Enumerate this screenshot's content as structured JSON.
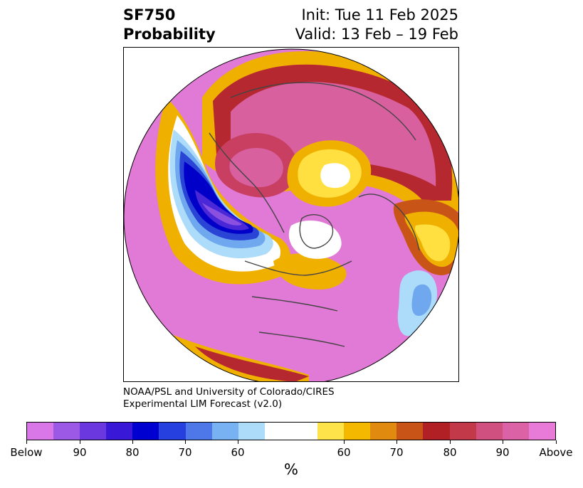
{
  "title": {
    "variable": "SF750",
    "subtitle": "Probability",
    "init": "Init: Tue 11 Feb 2025",
    "valid": "Valid: 13 Feb – 19 Feb"
  },
  "credit": {
    "line1": "NOAA/PSL and University of Colorado/CIRES",
    "line2": "Experimental LIM Forecast (v2.0)"
  },
  "colorbar": {
    "unit": "%",
    "colors": [
      "#d977e9",
      "#9b59e6",
      "#6b38e0",
      "#3a18d8",
      "#0000d0",
      "#2540de",
      "#4e78e8",
      "#78b2f2",
      "#addcfa",
      "#ffffff",
      "#ffe34a",
      "#f5b800",
      "#e08a10",
      "#c95418",
      "#b02024",
      "#c23a4a",
      "#d05080",
      "#dc62a6",
      "#e87ad8"
    ],
    "ticks": [
      "Below",
      "90",
      "80",
      "70",
      "60",
      "60",
      "70",
      "80",
      "90",
      "Above"
    ]
  },
  "map": {
    "projection": "north-polar-stereographic",
    "palette": {
      "magenta": "#e07ad6",
      "pink": "#d8609f",
      "rose": "#c83f62",
      "red": "#b62830",
      "orange": "#c95418",
      "amber": "#f0b000",
      "yellow": "#ffe040",
      "sky": "#addcfa",
      "lightblue": "#6fa8ee",
      "blue": "#2a44d6",
      "navy": "#0000c8",
      "indigo": "#4a28d8",
      "violet": "#8a50e0",
      "white": "#ffffff",
      "coast": "#444444"
    }
  }
}
